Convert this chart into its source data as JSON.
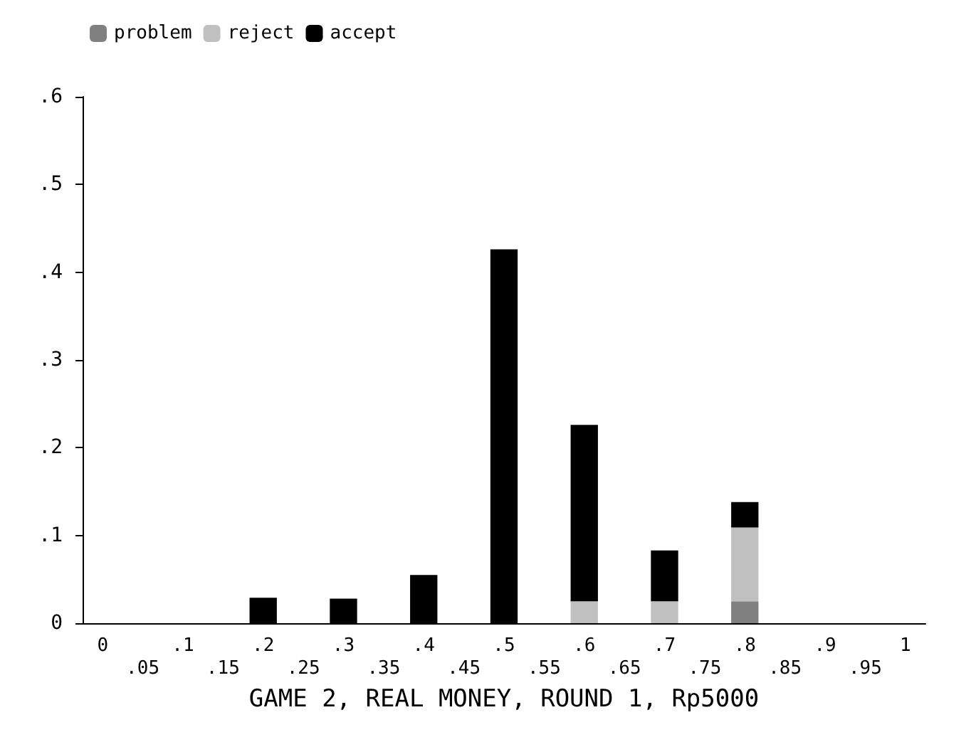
{
  "chart_data": {
    "type": "bar",
    "xlabel": "GAME 2, REAL MONEY, ROUND 1, Rp5000",
    "categories": [
      "0",
      ".05",
      ".1",
      ".15",
      ".2",
      ".25",
      ".3",
      ".35",
      ".4",
      ".45",
      ".5",
      ".55",
      ".6",
      ".65",
      ".7",
      ".75",
      ".8",
      ".85",
      ".9",
      ".95",
      "1"
    ],
    "stacked": true,
    "series": [
      {
        "name": "problem",
        "color": "#808080",
        "values": [
          0,
          0,
          0,
          0,
          0,
          0,
          0,
          0,
          0,
          0,
          0,
          0,
          0,
          0,
          0,
          0,
          0.025,
          0,
          0,
          0,
          0
        ]
      },
      {
        "name": "reject",
        "color": "#c0c0c0",
        "values": [
          0,
          0,
          0,
          0,
          0,
          0,
          0,
          0,
          0,
          0,
          0,
          0,
          0.025,
          0,
          0.025,
          0,
          0.084,
          0,
          0,
          0,
          0
        ]
      },
      {
        "name": "accept",
        "color": "#000000",
        "values": [
          0,
          0,
          0,
          0,
          0.029,
          0,
          0.028,
          0,
          0.055,
          0,
          0.426,
          0,
          0.201,
          0,
          0.058,
          0,
          0.029,
          0,
          0,
          0,
          0
        ]
      }
    ],
    "ylim": [
      0,
      0.6
    ],
    "yticks": [
      0,
      {
        "value": 0.1,
        "label": ".1"
      },
      {
        "value": 0.2,
        "label": ".2"
      },
      {
        "value": 0.3,
        "label": ".3"
      },
      {
        "value": 0.4,
        "label": ".4"
      },
      {
        "value": 0.5,
        "label": ".5"
      },
      {
        "value": 0.6,
        "label": ".6"
      }
    ],
    "grid": false,
    "legend": "top left"
  }
}
